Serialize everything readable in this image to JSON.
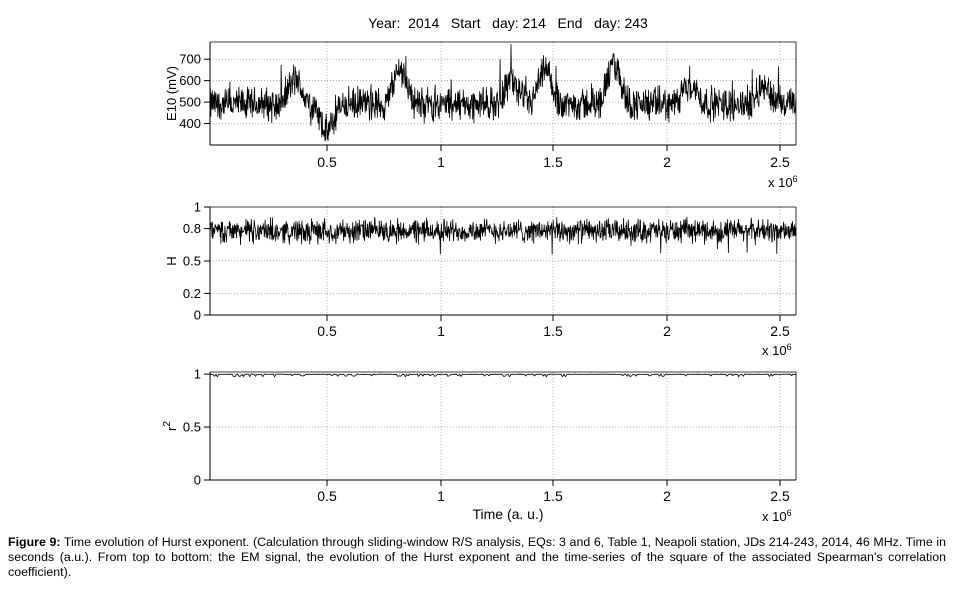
{
  "figure_title": "Year:  2014   Start   day: 214   End   day: 243",
  "caption": {
    "label": "Figure 9:",
    "text": " Time evolution of Hurst exponent. (Calculation through sliding-window R/S analysis, EQs: 3 and 6, Table 1, Neapoli station, JDs 214-243, 2014, 46 MHz. Time in seconds (a.u.). From top to bottom: the EM signal, the evolution of the Hurst exponent and the time-series of the square of the associated Spearman's correlation coefficient)."
  },
  "chart_data": [
    {
      "type": "line",
      "title": "Year:  2014   Start   day: 214   End   day: 243",
      "xlabel": "",
      "ylabel": "E10  (mV)",
      "x_unit_label": "x 10",
      "x_unit_exponent": "6",
      "x_tick_values": [
        0.5,
        1,
        1.5,
        2,
        2.5
      ],
      "x_tick_labels": [
        "0.5",
        "1",
        "1.5",
        "2",
        "2.5"
      ],
      "xlim": [
        0,
        2.55
      ],
      "ylim": [
        300,
        780
      ],
      "y_tick_values": [
        400,
        500,
        600,
        700
      ],
      "y_tick_labels": [
        "400",
        "500",
        "600",
        "700"
      ],
      "grid": true,
      "series": [
        {
          "x_range": [
            0,
            2.55
          ],
          "baseline": 490,
          "noise_amplitude": 60,
          "dense_fluctuations": true,
          "bursts": [
            {
              "x": 0.36,
              "level": 620
            },
            {
              "x": 0.5,
              "level": 340
            },
            {
              "x": 0.82,
              "level": 680
            },
            {
              "x": 1.3,
              "level": 620
            },
            {
              "x": 1.45,
              "level": 660
            },
            {
              "x": 1.75,
              "level": 700
            },
            {
              "x": 2.08,
              "level": 600
            },
            {
              "x": 2.4,
              "level": 590
            }
          ],
          "range": [
            320,
            770
          ]
        }
      ]
    },
    {
      "type": "line",
      "ylabel": "H",
      "x_unit_label": "x 10",
      "x_unit_exponent": "6",
      "x_tick_values": [
        0.5,
        1,
        1.5,
        2,
        2.5
      ],
      "x_tick_labels": [
        "0.5",
        "1",
        "1.5",
        "2",
        "2.5"
      ],
      "xlim": [
        0,
        2.55
      ],
      "ylim": [
        0,
        1
      ],
      "y_tick_values": [
        0,
        0.2,
        0.5,
        0.8,
        1
      ],
      "y_tick_labels": [
        "0",
        "0.2",
        "0.5",
        "0.8",
        "1"
      ],
      "grid": true,
      "series": [
        {
          "x_range": [
            0,
            2.55
          ],
          "mean": 0.78,
          "noise_amplitude": 0.09,
          "range": [
            0.55,
            1.0
          ]
        }
      ]
    },
    {
      "type": "line",
      "xlabel": "Time  (a. u.)",
      "ylabel": "r",
      "ylabel_superscript": "2",
      "x_unit_label": "x 10",
      "x_unit_exponent": "6",
      "x_tick_values": [
        0.5,
        1,
        1.5,
        2,
        2.5
      ],
      "x_tick_labels": [
        "0.5",
        "1",
        "1.5",
        "2",
        "2.5"
      ],
      "xlim": [
        0,
        2.55
      ],
      "ylim": [
        0,
        1.02
      ],
      "y_tick_values": [
        0,
        0.5,
        1
      ],
      "y_tick_labels": [
        "0",
        "0.5",
        "1"
      ],
      "grid": true,
      "series": [
        {
          "x_range": [
            0,
            2.55
          ],
          "mean": 0.995,
          "min": 0.975,
          "range": [
            0.975,
            1.0
          ]
        }
      ]
    }
  ]
}
